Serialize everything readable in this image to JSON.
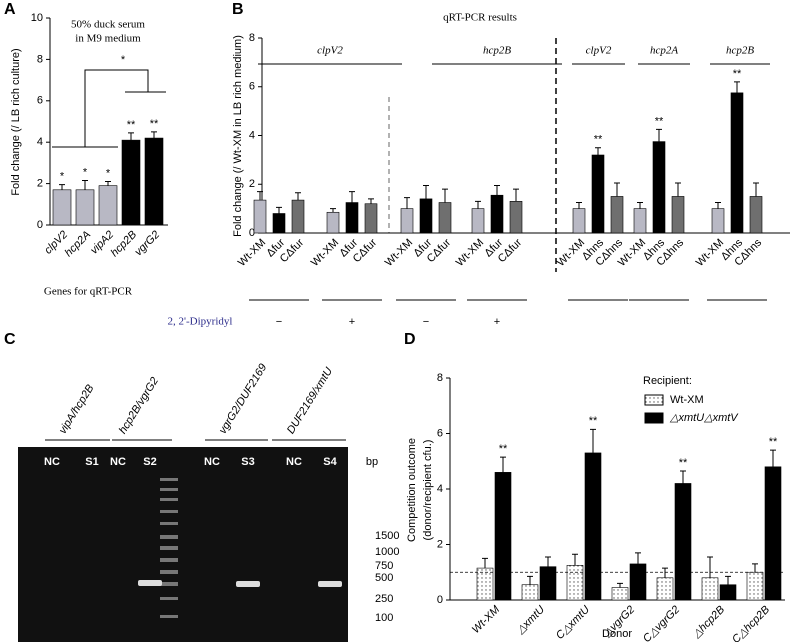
{
  "panels": [
    "A",
    "B",
    "C",
    "D"
  ],
  "chart_data": [
    {
      "type": "bar",
      "annotation": [
        "50% duck serum",
        "in M9 medium"
      ],
      "ylabel": "Fold change (/ LB rich culture)",
      "xlabel": "Genes for qRT-PCR",
      "categories": [
        "clpV2",
        "hcp2A",
        "vipA2",
        "hcp2B",
        "vgrG2"
      ],
      "values": [
        1.7,
        1.7,
        1.9,
        4.1,
        4.2
      ],
      "errors": [
        0.25,
        0.45,
        0.2,
        0.35,
        0.3
      ],
      "colors": [
        "#b8b8c4",
        "#b8b8c4",
        "#b8b8c4",
        "#000000",
        "#000000"
      ],
      "significance": [
        "*",
        "*",
        "*",
        "**",
        "**"
      ],
      "bracket_label": "*",
      "ylim": [
        0,
        10
      ],
      "yticks": [
        0,
        2,
        4,
        6,
        8,
        10
      ]
    },
    {
      "type": "bar",
      "title": "qRT-PCR results",
      "ylabel": "Fold change (/ Wt-XM in LB rich medium)",
      "categories": [
        "Wt-XM",
        "Δfur",
        "CΔfur",
        "Wt-XM",
        "Δfur",
        "CΔfur",
        "Wt-XM",
        "Δfur",
        "CΔfur",
        "Wt-XM",
        "Δfur",
        "CΔfur",
        "Wt-XM",
        "Δhns",
        "CΔhns",
        "Wt-XM",
        "Δhns",
        "CΔhns",
        "Wt-XM",
        "Δhns",
        "CΔhns"
      ],
      "values": [
        1.35,
        0.8,
        1.35,
        0.85,
        1.25,
        1.2,
        1.0,
        1.4,
        1.25,
        1.0,
        1.55,
        1.3,
        1.0,
        3.2,
        1.5,
        1.0,
        3.75,
        1.5,
        1.0,
        5.75,
        1.5
      ],
      "errors": [
        0.35,
        0.25,
        0.3,
        0.15,
        0.45,
        0.2,
        0.45,
        0.55,
        0.55,
        0.3,
        0.4,
        0.5,
        0.25,
        0.3,
        0.55,
        0.25,
        0.5,
        0.55,
        0.25,
        0.45,
        0.55
      ],
      "colors": [
        "#b8b8c4",
        "#000000",
        "#6f6f6f",
        "#b8b8c4",
        "#000000",
        "#6f6f6f",
        "#b8b8c4",
        "#000000",
        "#6f6f6f",
        "#b8b8c4",
        "#000000",
        "#6f6f6f",
        "#b8b8c4",
        "#000000",
        "#6f6f6f",
        "#b8b8c4",
        "#000000",
        "#6f6f6f",
        "#b8b8c4",
        "#000000",
        "#6f6f6f"
      ],
      "significance": [
        null,
        null,
        null,
        null,
        null,
        null,
        null,
        null,
        null,
        null,
        null,
        null,
        null,
        "**",
        null,
        null,
        "**",
        null,
        null,
        "**",
        null
      ],
      "genes": [
        "clpV2",
        "hcp2B",
        "clpV2",
        "hcp2A",
        "hcp2B"
      ],
      "treatment_label": "2, 2'-Dipyridyl",
      "treatments": [
        "−",
        "+",
        "−",
        "+"
      ],
      "ylim": [
        0,
        8
      ],
      "yticks": [
        0,
        2,
        4,
        6,
        8
      ]
    },
    {
      "type": "grouped_bar",
      "ylabel": [
        "Competition outcome",
        "(donor/recipient cfu.)"
      ],
      "xlabel": "Donor",
      "legend_title": "Recipient:",
      "categories": [
        "Wt-XM",
        "△xmtU",
        "C△xmtU",
        "△vgrG2",
        "C△vgrG2",
        "△hcp2B",
        "C△hcp2B"
      ],
      "series": [
        {
          "name": "Wt-XM",
          "color": "#ffffff",
          "pattern": "dots",
          "values": [
            1.15,
            0.55,
            1.25,
            0.45,
            0.8,
            0.8,
            1.0
          ],
          "errors": [
            0.35,
            0.3,
            0.4,
            0.15,
            0.35,
            0.75,
            0.3
          ]
        },
        {
          "name": "△xmtU△xmtV",
          "color": "#000000",
          "values": [
            4.6,
            1.2,
            5.3,
            1.3,
            4.2,
            0.55,
            4.8
          ],
          "errors": [
            0.55,
            0.35,
            0.85,
            0.4,
            0.45,
            0.3,
            0.6
          ],
          "significance": [
            "**",
            null,
            "**",
            null,
            "**",
            null,
            "**"
          ]
        }
      ],
      "reference_line": 1,
      "ylim": [
        0,
        8
      ],
      "yticks": [
        0,
        2,
        4,
        6,
        8
      ]
    }
  ],
  "gel": {
    "primers": [
      "vipA/hcp2B",
      "hcp2B/vgrG2",
      "vgrG2/DUF2169",
      "DUF2169/xmtU"
    ],
    "lanes": [
      "NC",
      "S1",
      "NC",
      "S2",
      "NC",
      "S3",
      "NC",
      "S4"
    ],
    "unit": "bp",
    "markers": [
      1500,
      1000,
      750,
      500,
      250,
      100
    ]
  }
}
